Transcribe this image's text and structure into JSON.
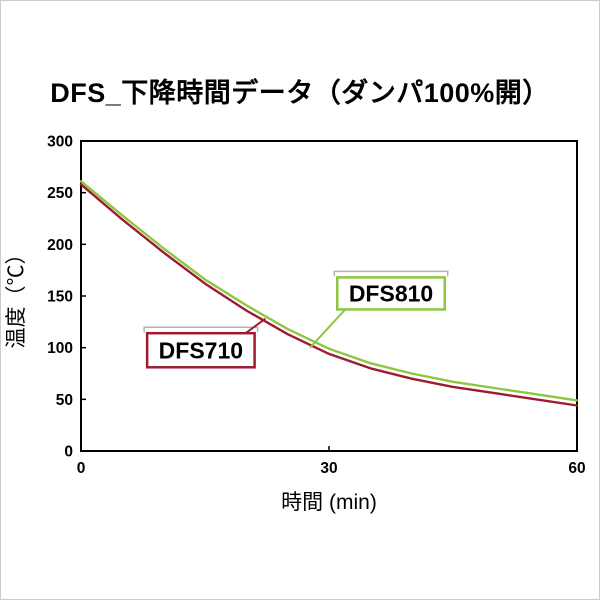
{
  "chart_data": {
    "type": "line",
    "title": "DFS_下降時間データ（ダンパ100%開）",
    "xlabel": "時間 (min)",
    "ylabel": "温度（℃）",
    "xlim": [
      0,
      60
    ],
    "ylim": [
      0,
      300
    ],
    "xticks": [
      0,
      30,
      60
    ],
    "yticks": [
      0,
      50,
      100,
      150,
      200,
      250,
      300
    ],
    "grid": false,
    "legend_position": "inline-callouts",
    "x": [
      0,
      5,
      10,
      15,
      20,
      25,
      30,
      35,
      40,
      45,
      50,
      55,
      60
    ],
    "series": [
      {
        "name": "DFS710",
        "color": "#9e1b32",
        "values": [
          258,
          224,
          192,
          162,
          136,
          113,
          94,
          80,
          70,
          62,
          56,
          50,
          44
        ]
      },
      {
        "name": "DFS810",
        "color": "#8dc63f",
        "values": [
          261,
          228,
          196,
          166,
          141,
          118,
          99,
          85,
          75,
          67,
          61,
          55,
          49
        ]
      }
    ],
    "annotations": [
      {
        "label": "DFS710",
        "color": "#9e1b32",
        "box": {
          "x": 8,
          "y_top": 114,
          "w": 13,
          "h": 33
        },
        "anchor": {
          "x": 22.3,
          "y": 128
        },
        "leader_from": "top-right"
      },
      {
        "label": "DFS810",
        "color": "#8dc63f",
        "box": {
          "x": 31,
          "y_top": 168,
          "w": 13,
          "h": 31
        },
        "anchor": {
          "x": 27.7,
          "y": 100
        },
        "leader_from": "bottom-left"
      }
    ],
    "colors": {
      "axis": "#000000",
      "bracket": "#b3b3b3",
      "annotation_text": "#000000",
      "annotation_fill": "#ffffff"
    }
  }
}
